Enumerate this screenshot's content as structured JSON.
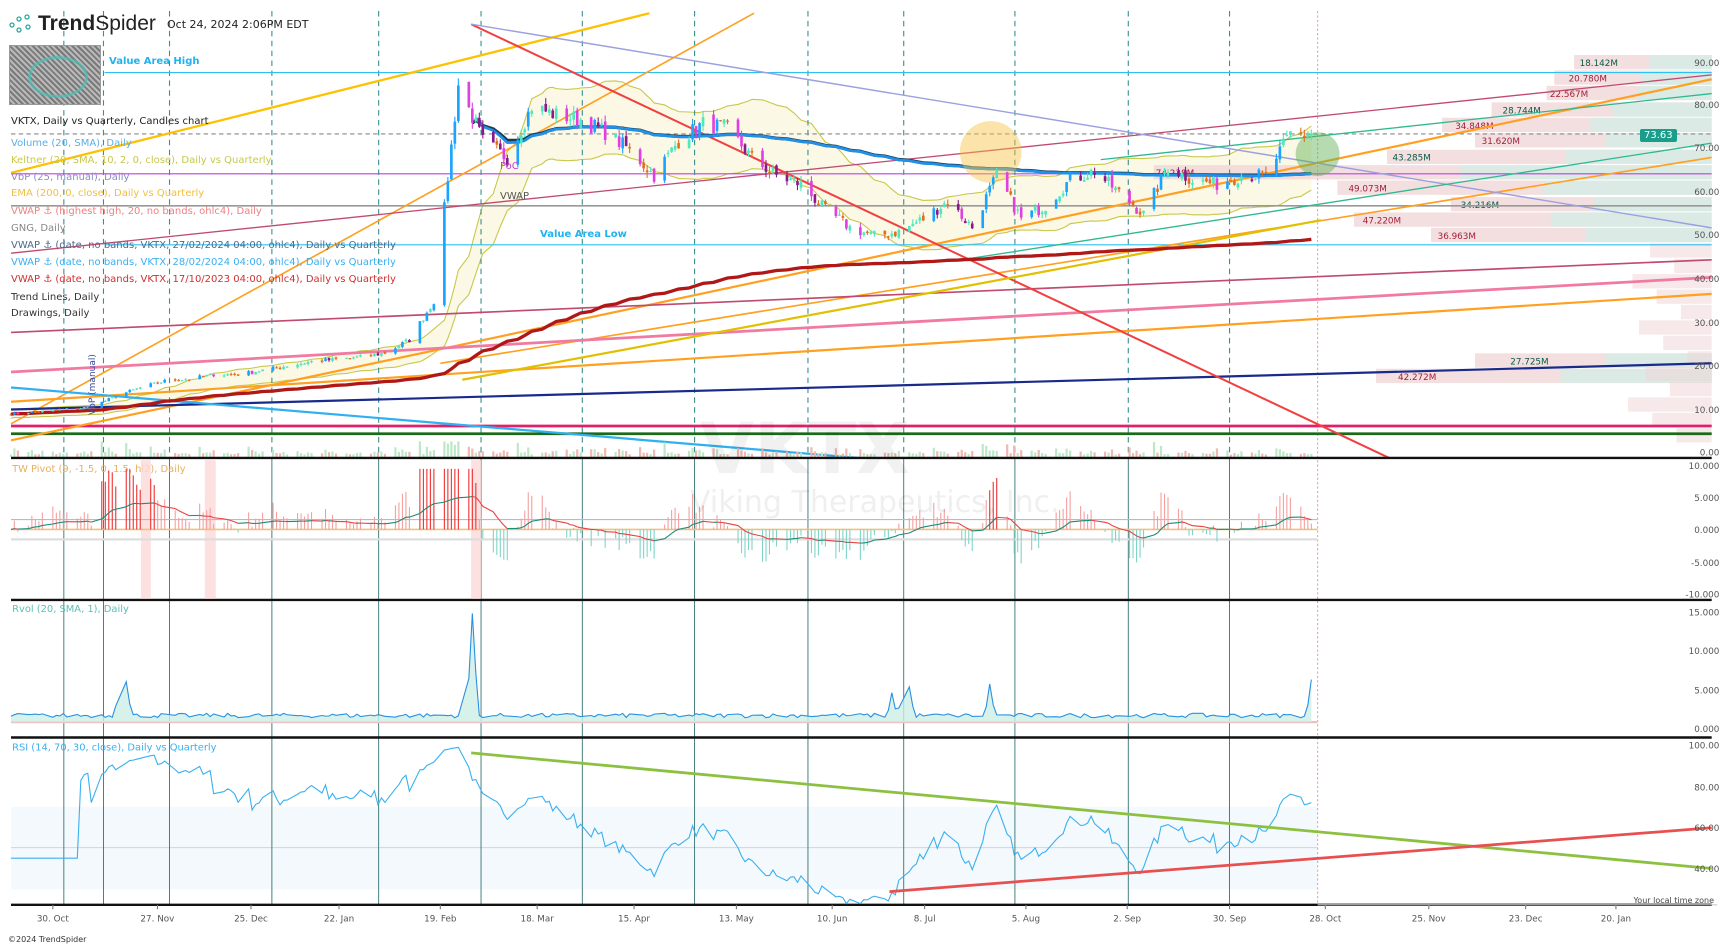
{
  "header": {
    "brand_bold": "Trend",
    "brand_light": "Spider",
    "timestamp": "Oct 24, 2024 2:06PM EDT"
  },
  "legend": [
    {
      "text": "VKTX, Daily vs Quarterly, Candles chart",
      "color": "#222222"
    },
    {
      "text": "Volume (20, SMA), Daily",
      "color": "#5aaee8"
    },
    {
      "text": "Keltner (20, SMA, 10, 2, 0, close), Daily vs Quarterly",
      "color": "#c8c84a"
    },
    {
      "text": "VbP (25, manual), Daily",
      "color": "#8a8fbf"
    },
    {
      "text": "EMA (200, 0, close), Daily vs Quarterly",
      "color": "#f0c040"
    },
    {
      "text": "VWAP ⚓ (highest high, 20, no bands, ohlc4), Daily",
      "color": "#f08080"
    },
    {
      "text": "GNG, Daily",
      "color": "#888888"
    },
    {
      "text": "VWAP ⚓ (date, no bands, VKTX, 27/02/2024 04:00, ohlc4), Daily vs Quarterly",
      "color": "#4a6a8a"
    },
    {
      "text": "VWAP ⚓ (date, no bands, VKTX, 28/02/2024 04:00, ohlc4), Daily vs Quarterly",
      "color": "#3ab0f0"
    },
    {
      "text": "VWAP ⚓ (date, no bands, VKTX, 17/10/2023 04:00, ohlc4), Daily vs Quarterly",
      "color": "#d03030"
    },
    {
      "text": "Trend Lines, Daily",
      "color": "#333333"
    },
    {
      "text": "Drawings, Daily",
      "color": "#333333"
    }
  ],
  "annotations": {
    "value_area_high": "Value Area High",
    "value_area_low": "Value Area Low",
    "poc": "PoC",
    "vwap": "VWAP",
    "vbp_vertical": "VbP (manual)",
    "current_price": "73.63"
  },
  "watermark": {
    "ticker": "VKTX",
    "company": "Viking Therapeutics, Inc."
  },
  "footer": {
    "copyright": "©2024 TrendSpider",
    "timezone": "Your local time zone"
  },
  "colors": {
    "up": "#4de8c0",
    "strong_up": "#1aa3ff",
    "down": "#e07020",
    "strong_down": "#e040e0",
    "weak_down": "#8a1a8a",
    "accent": "#1a9e8c"
  },
  "chart_data": [
    {
      "type": "candlestick",
      "title": "VKTX, Daily vs Quarterly, Candles chart",
      "ylim": [
        0,
        95
      ],
      "y_ticks": [
        "90.00",
        "80.00",
        "70.00",
        "60.00",
        "50.00",
        "40.00",
        "30.00",
        "20.00",
        "10.00",
        "0.00"
      ],
      "x_ticks": [
        "30. Oct",
        "27. Nov",
        "25. Dec",
        "22. Jan",
        "19. Feb",
        "18. Mar",
        "15. Apr",
        "13. May",
        "10. Jun",
        "8. Jul",
        "5. Aug",
        "2. Sep",
        "30. Sep",
        "28. Oct",
        "25. Nov",
        "23. Dec",
        "20. Jan"
      ],
      "weekly_close": {
        "start_week": "2023-10-23",
        "values": [
          9,
          9.5,
          10,
          10.5,
          13,
          15,
          16.5,
          17,
          18,
          18,
          19,
          20,
          21,
          21.5,
          22,
          23,
          26,
          35,
          85,
          72,
          68,
          80,
          78,
          77,
          74,
          70,
          64,
          72,
          76,
          75,
          68,
          64,
          62,
          56,
          52,
          50,
          51,
          54,
          58,
          52,
          64,
          54,
          57,
          63,
          65,
          60,
          55,
          66,
          63,
          62,
          64,
          64,
          73.63
        ]
      },
      "last_price": 73.63,
      "levels": {
        "value_area_high": 87.8,
        "value_area_low": 48,
        "poc": 64.4,
        "vwap": 57
      },
      "volume_profile": [
        "18.142M",
        "20.780M",
        "22.567M",
        "28.744M",
        "34.848M",
        "31.620M",
        "43.285M",
        "74.238M",
        "49.073M",
        "34.216M",
        "47.220M",
        "36.963M",
        "27.725M",
        "42.272M"
      ]
    },
    {
      "type": "bar",
      "title": "TW Pivot (9, -1.5, 0, 1.5, hl2), Daily",
      "y_ticks": [
        "10.000",
        "5.000",
        "0.000",
        "-5.000",
        "-10.000"
      ],
      "ylim": [
        -10,
        10
      ]
    },
    {
      "type": "area",
      "title": "Rvol (20, SMA, 1), Daily",
      "y_ticks": [
        "15.000",
        "10.000",
        "5.000",
        "0.000"
      ],
      "ylim": [
        0,
        15
      ],
      "spikes": [
        {
          "date": "2023-11-20",
          "value": 5.5
        },
        {
          "date": "2024-02-27",
          "value": 14.8
        },
        {
          "date": "2024-06-26",
          "value": 4.0
        },
        {
          "date": "2024-07-01",
          "value": 4.8
        },
        {
          "date": "2024-07-24",
          "value": 5.2
        },
        {
          "date": "2024-10-24",
          "value": 5.8
        }
      ]
    },
    {
      "type": "line",
      "title": "RSI (14, 70, 30, close), Daily vs Quarterly",
      "y_ticks": [
        "100.00",
        "80.00",
        "60.00",
        "40.00"
      ],
      "ylim": [
        22,
        100
      ],
      "bands": [
        30,
        70
      ]
    }
  ]
}
